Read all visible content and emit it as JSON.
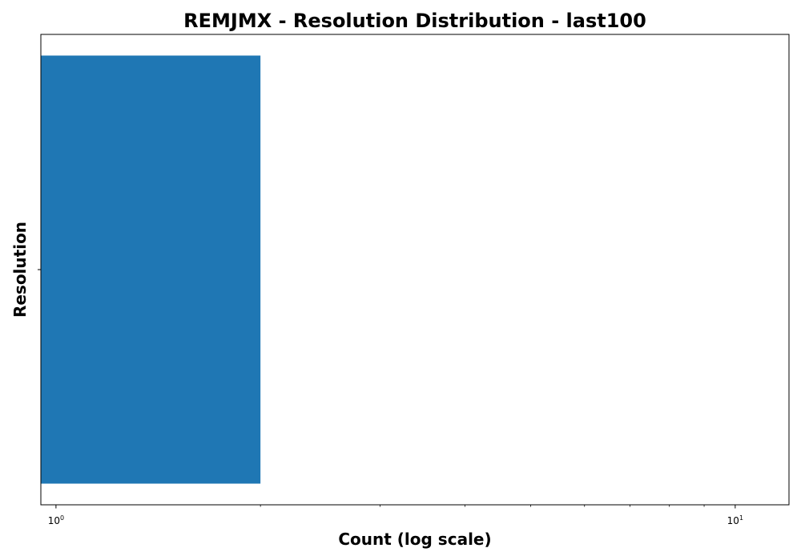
{
  "chart_data": {
    "type": "bar",
    "orientation": "horizontal",
    "title": "REMJMX - Resolution Distribution - last100",
    "xlabel": "Count (log scale)",
    "ylabel": "Resolution",
    "x_scale": "log",
    "xlim": [
      0.95,
      12
    ],
    "x_ticks": [
      {
        "value": 1,
        "base": "10",
        "exponent": "0"
      },
      {
        "value": 10,
        "base": "10",
        "exponent": "1"
      }
    ],
    "categories": [
      ""
    ],
    "values": [
      2
    ],
    "bar_color": "#1f77b4",
    "grid": false,
    "legend": "none"
  }
}
